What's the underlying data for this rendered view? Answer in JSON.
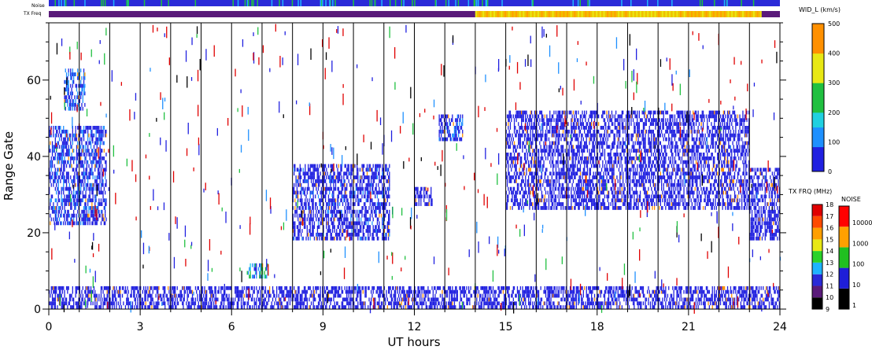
{
  "chart_data": {
    "type": "heatmap",
    "title": "",
    "xlabel": "UT hours",
    "ylabel": "Range Gate",
    "xlim": [
      0,
      24
    ],
    "ylim": [
      0,
      75
    ],
    "x_ticks": [
      "0",
      "3",
      "6",
      "9",
      "12",
      "15",
      "18",
      "21",
      "24"
    ],
    "y_ticks": [
      "0",
      "20",
      "40",
      "60"
    ],
    "grid": "vertical lines at each integer UT hour",
    "top_strips": [
      {
        "label": "Noise",
        "description_values": "mostly noise category ~10 (blue) with scattered cyan/green"
      },
      {
        "label": "TX Freq",
        "segments": [
          {
            "from": 0,
            "to": 14,
            "value_MHz": 10
          },
          {
            "from": 14,
            "to": 23.4,
            "value_MHz": 14.5
          },
          {
            "from": 23.4,
            "to": 24,
            "value_MHz": 10
          }
        ]
      }
    ],
    "colorbars": [
      {
        "title": "WID_L (km/s)",
        "min": 0,
        "max": 500,
        "ticks": [
          "0",
          "100",
          "200",
          "300",
          "400",
          "500"
        ]
      },
      {
        "title": "TX FRQ (MHz)",
        "ticks": [
          "9",
          "10",
          "11",
          "12",
          "13",
          "14",
          "15",
          "16",
          "17",
          "18"
        ],
        "colors": [
          "#000000",
          "#5a1a7a",
          "#2a2ad8",
          "#1eb4ff",
          "#2ad22a",
          "#e8e814",
          "#ff9f00",
          "#ff4a00",
          "#e00000"
        ]
      },
      {
        "title": "NOISE",
        "ticks": [
          "1",
          "10",
          "100",
          "1000",
          "10000"
        ],
        "colors": [
          "#000000",
          "#1e1ed8",
          "#20c020",
          "#ffa000",
          "#ff0000"
        ]
      }
    ],
    "scatter_regions": [
      {
        "name": "ground scatter near range",
        "x": [
          0,
          24
        ],
        "y": [
          0,
          5
        ],
        "width_km_s": 40
      },
      {
        "name": "early arc",
        "x": [
          0,
          1.9
        ],
        "y": [
          22,
          47
        ],
        "width_km_s": 60
      },
      {
        "name": "early high patch",
        "x": [
          0.5,
          1.2
        ],
        "y": [
          52,
          62
        ],
        "width_km_s": 80
      },
      {
        "name": "mid-morning patch",
        "x": [
          6.5,
          7.2
        ],
        "y": [
          8,
          11
        ],
        "width_km_s": 150
      },
      {
        "name": "morning band",
        "x": [
          8,
          11.2
        ],
        "y": [
          18,
          37
        ],
        "width_km_s": 50
      },
      {
        "name": "noon patch",
        "x": [
          12,
          12.6
        ],
        "y": [
          27,
          31
        ],
        "width_km_s": 40
      },
      {
        "name": "early afternoon arc",
        "x": [
          12.8,
          13.6
        ],
        "y": [
          44,
          50
        ],
        "width_km_s": 60
      },
      {
        "name": "afternoon main band",
        "x": [
          15,
          23
        ],
        "y": [
          26,
          51
        ],
        "width_km_s": 35
      },
      {
        "name": "late band",
        "x": [
          23,
          24
        ],
        "y": [
          18,
          36
        ],
        "width_km_s": 30
      }
    ]
  }
}
